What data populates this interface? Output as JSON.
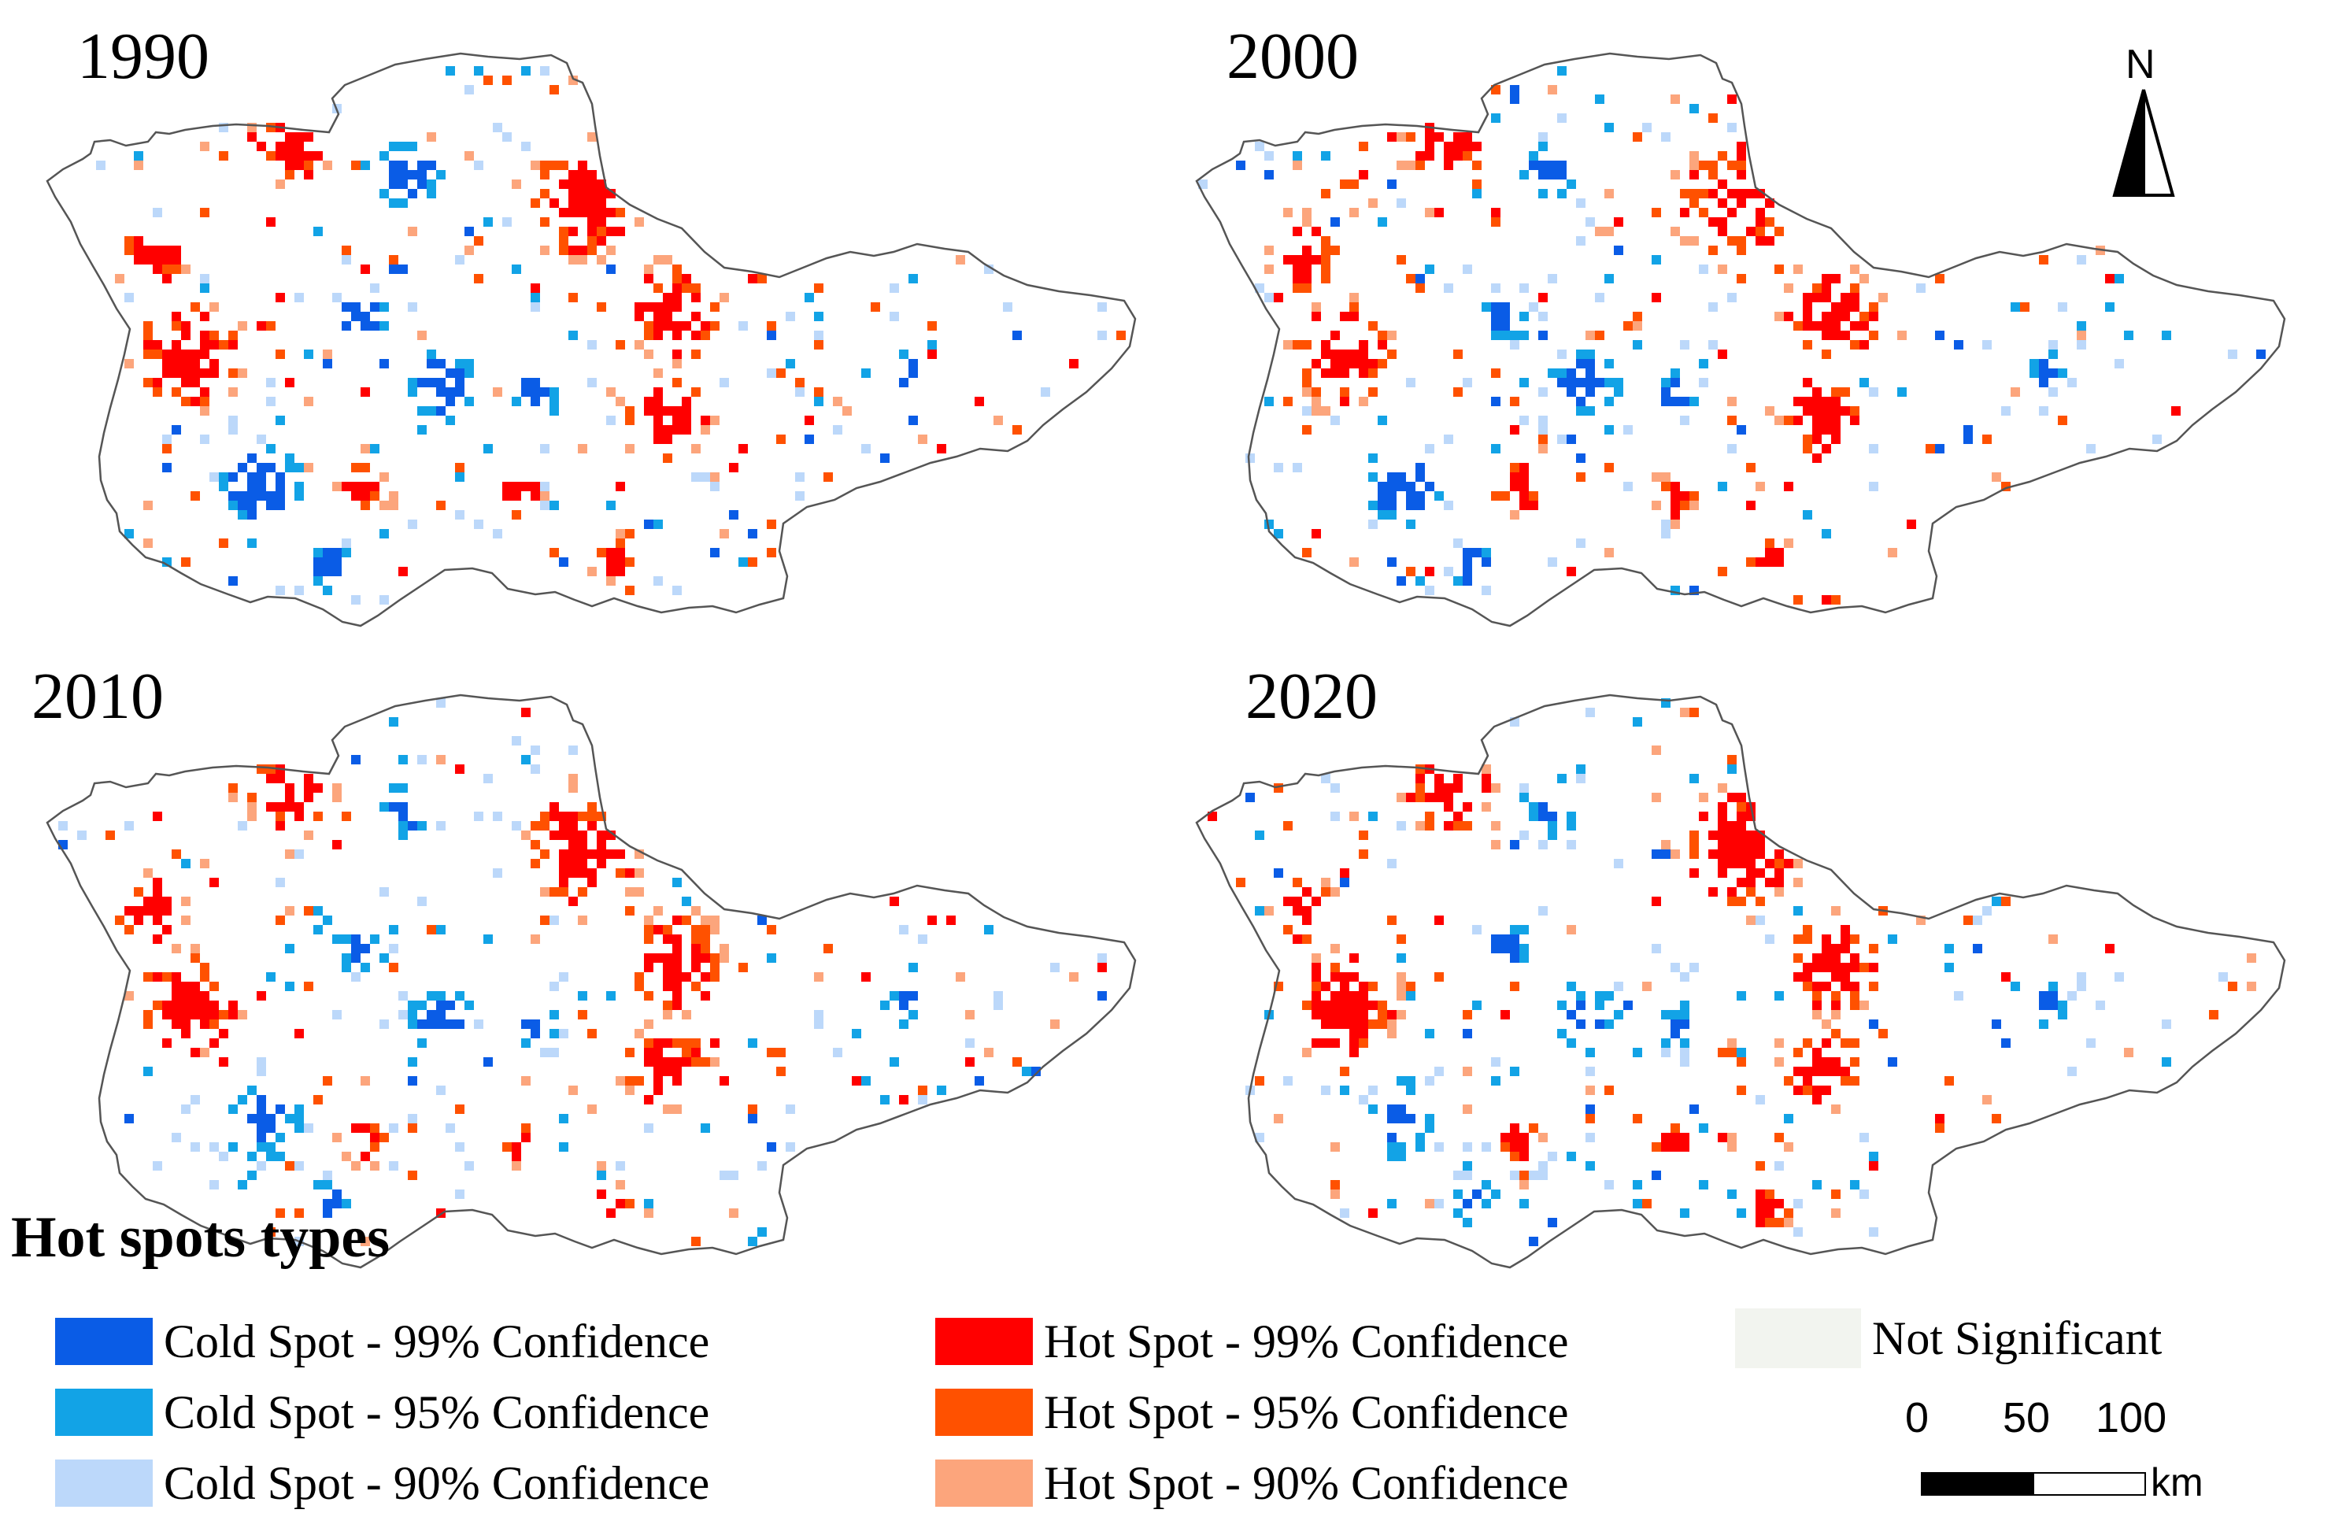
{
  "panels": [
    {
      "year": "1990",
      "seed": 11,
      "hot_bias": 1.0,
      "cold_bias": 1.15
    },
    {
      "year": "2000",
      "seed": 23,
      "hot_bias": 1.0,
      "cold_bias": 1.0
    },
    {
      "year": "2010",
      "seed": 37,
      "hot_bias": 1.0,
      "cold_bias": 0.9
    },
    {
      "year": "2020",
      "seed": 53,
      "hot_bias": 1.05,
      "cold_bias": 0.85
    }
  ],
  "north_arrow": {
    "label": "N"
  },
  "legend": {
    "title": "Hot spots types",
    "items": [
      {
        "label": "Cold Spot - 99% Confidence",
        "color": "#0a5ce6"
      },
      {
        "label": "Cold Spot - 95% Confidence",
        "color": "#12a3e6"
      },
      {
        "label": "Cold Spot - 90% Confidence",
        "color": "#bcd8fa"
      },
      {
        "label": "Hot Spot - 99% Confidence",
        "color": "#ff0000"
      },
      {
        "label": "Hot Spot - 95% Confidence",
        "color": "#ff5100"
      },
      {
        "label": "Hot Spot - 90% Confidence",
        "color": "#fca57c"
      },
      {
        "label": "Not Significant",
        "color": "#f2f4ef"
      }
    ]
  },
  "scale_bar": {
    "ticks": [
      "0",
      "50",
      "100"
    ],
    "unit": "km"
  }
}
